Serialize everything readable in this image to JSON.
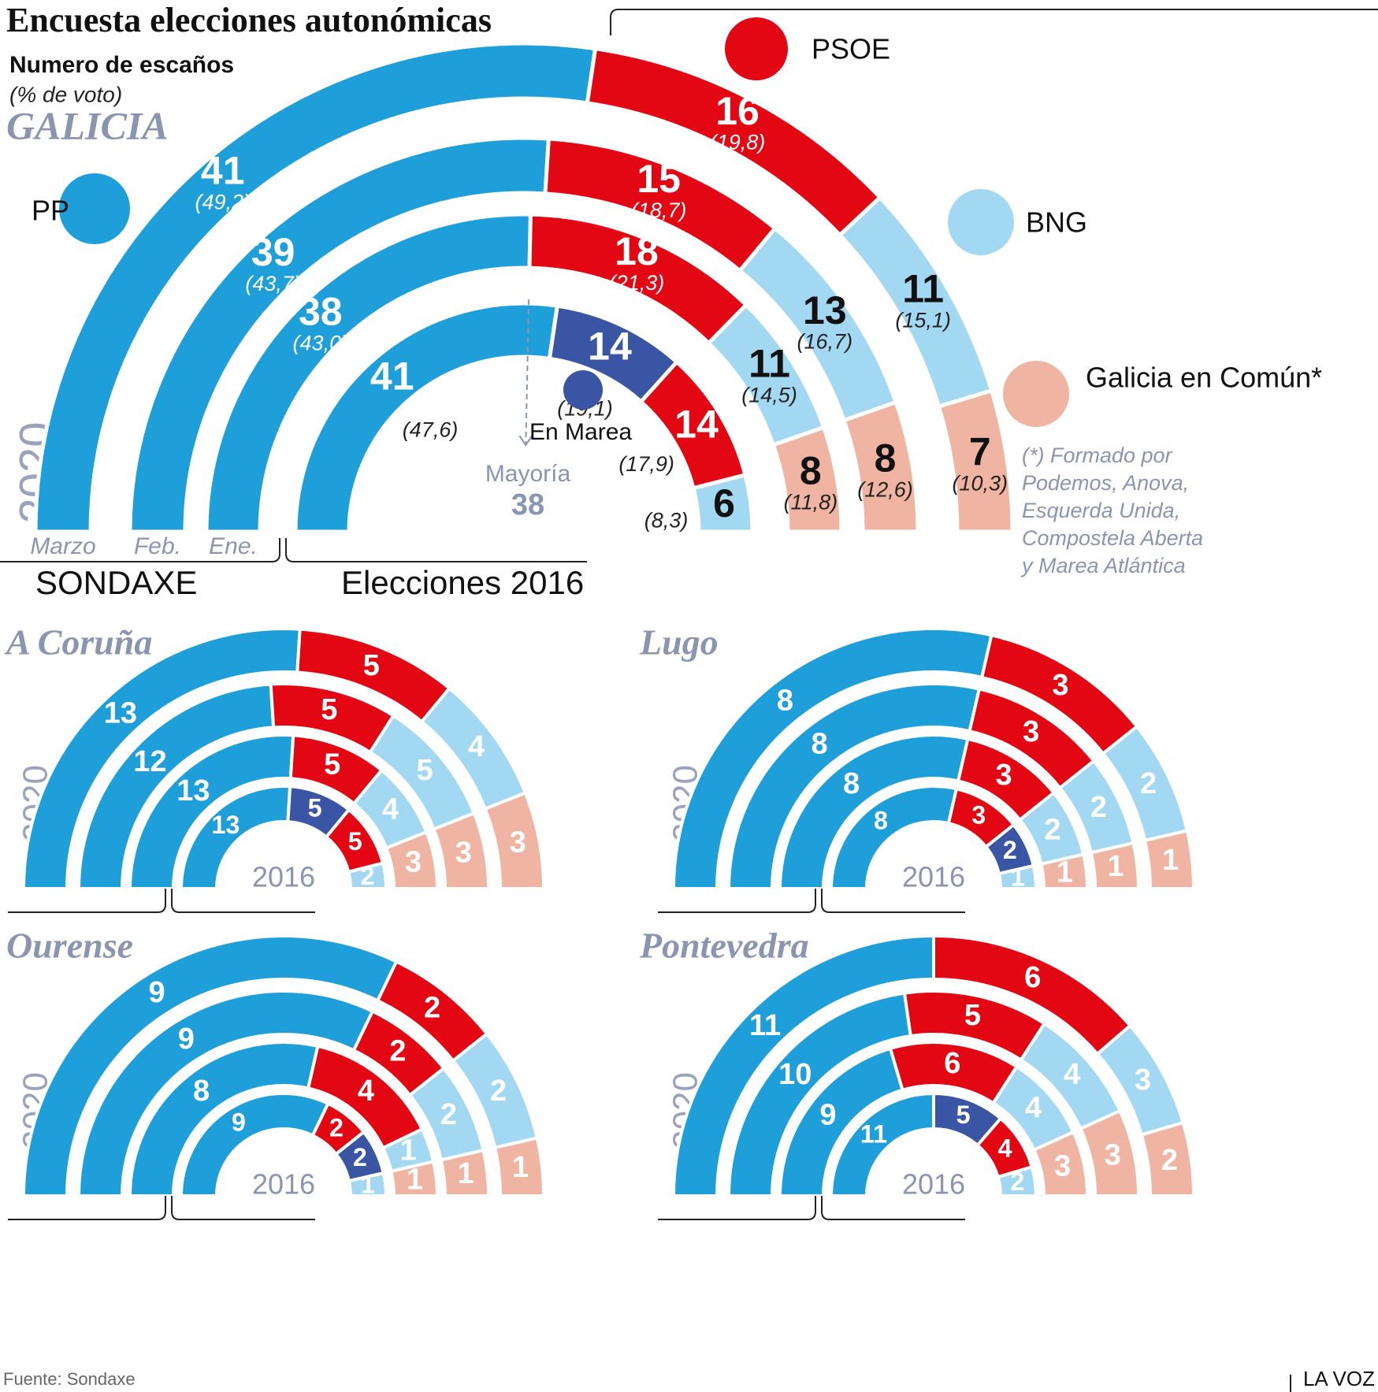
{
  "title": "Encuesta elecciones autonómicas",
  "subtitle": "Numero de escaños",
  "subtitle2": "(% de voto)",
  "source": "Fuente: Sondaxe",
  "brand": "LA VOZ",
  "chart_data": [
    {
      "type": "parliament",
      "title": "GALICIA",
      "side_label": "2020",
      "categories": [
        "Marzo",
        "Feb.",
        "Ene.",
        null
      ],
      "group_labels": [
        "SONDAXE",
        "Elecciones 2016"
      ],
      "majority_label": "Mayoría",
      "majority": 38,
      "footnote": [
        "(*) Formado por",
        "Podemos, Anova,",
        "Esquerda Unida,",
        "Compostela Aberta",
        "y Marea Atlántica"
      ],
      "series": [
        {
          "name": "PP",
          "color": "#1e9fd9",
          "values": [
            41,
            39,
            38,
            41
          ],
          "votes": [
            49.2,
            43.7,
            43.0,
            47.6
          ],
          "vote_labels": [
            "(49,2)",
            "(43,7)",
            "(43,0)",
            "(47,6)"
          ]
        },
        {
          "name": "En Marea",
          "color": "#3a55a4",
          "values": [
            null,
            null,
            null,
            14
          ],
          "votes": [
            null,
            null,
            null,
            19.1
          ],
          "vote_labels": [
            null,
            null,
            null,
            "(19,1)"
          ]
        },
        {
          "name": "PSOE",
          "color": "#e30613",
          "values": [
            16,
            15,
            18,
            14
          ],
          "votes": [
            19.8,
            18.7,
            21.3,
            17.9
          ],
          "vote_labels": [
            "(19,8)",
            "(18,7)",
            "(21,3)",
            "(17,9)"
          ]
        },
        {
          "name": "BNG",
          "color": "#a3d8f3",
          "values": [
            11,
            13,
            11,
            6
          ],
          "votes": [
            15.1,
            16.7,
            14.5,
            8.3
          ],
          "vote_labels": [
            "(15,1)",
            "(16,7)",
            "(14,5)",
            "(8,3)"
          ]
        },
        {
          "name": "Galicia en Común*",
          "color": "#efb4a2",
          "values": [
            7,
            8,
            8,
            null
          ],
          "votes": [
            10.3,
            12.6,
            11.8,
            null
          ],
          "vote_labels": [
            "(10,3)",
            "(12,6)",
            "(11,8)",
            null
          ]
        }
      ]
    },
    {
      "type": "parliament",
      "title": "A Coruña",
      "side_label": "2020",
      "categories": [
        null,
        null,
        null,
        "2016"
      ],
      "series": [
        {
          "name": "PP",
          "color": "#1e9fd9",
          "values": [
            13,
            12,
            13,
            13
          ]
        },
        {
          "name": "En Marea",
          "color": "#3a55a4",
          "values": [
            null,
            null,
            null,
            5
          ]
        },
        {
          "name": "PSOE",
          "color": "#e30613",
          "values": [
            5,
            5,
            5,
            5
          ]
        },
        {
          "name": "BNG",
          "color": "#a3d8f3",
          "values": [
            4,
            5,
            4,
            2
          ]
        },
        {
          "name": "Galicia en Común*",
          "color": "#efb4a2",
          "values": [
            3,
            3,
            3,
            null
          ]
        }
      ]
    },
    {
      "type": "parliament",
      "title": "Lugo",
      "side_label": "2020",
      "categories": [
        null,
        null,
        null,
        "2016"
      ],
      "series": [
        {
          "name": "PP",
          "color": "#1e9fd9",
          "values": [
            8,
            8,
            8,
            8
          ]
        },
        {
          "name": "PSOE",
          "color": "#e30613",
          "values": [
            3,
            3,
            3,
            3
          ]
        },
        {
          "name": "En Marea",
          "color": "#3a55a4",
          "values": [
            null,
            null,
            null,
            2
          ]
        },
        {
          "name": "BNG",
          "color": "#a3d8f3",
          "values": [
            2,
            2,
            2,
            1
          ]
        },
        {
          "name": "Galicia en Común*",
          "color": "#efb4a2",
          "values": [
            1,
            1,
            1,
            null
          ]
        }
      ]
    },
    {
      "type": "parliament",
      "title": "Ourense",
      "side_label": "2020",
      "categories": [
        null,
        null,
        null,
        "2016"
      ],
      "series": [
        {
          "name": "PP",
          "color": "#1e9fd9",
          "values": [
            9,
            9,
            8,
            9
          ]
        },
        {
          "name": "PSOE",
          "color": "#e30613",
          "values": [
            2,
            2,
            4,
            2
          ]
        },
        {
          "name": "En Marea",
          "color": "#3a55a4",
          "values": [
            null,
            null,
            null,
            2
          ]
        },
        {
          "name": "BNG",
          "color": "#a3d8f3",
          "values": [
            2,
            2,
            1,
            1
          ]
        },
        {
          "name": "Galicia en Común*",
          "color": "#efb4a2",
          "values": [
            1,
            1,
            1,
            null
          ]
        }
      ]
    },
    {
      "type": "parliament",
      "title": "Pontevedra",
      "side_label": "2020",
      "categories": [
        null,
        null,
        null,
        "2016"
      ],
      "series": [
        {
          "name": "PP",
          "color": "#1e9fd9",
          "values": [
            11,
            10,
            9,
            11
          ]
        },
        {
          "name": "En Marea",
          "color": "#3a55a4",
          "values": [
            null,
            null,
            null,
            5
          ]
        },
        {
          "name": "PSOE",
          "color": "#e30613",
          "values": [
            6,
            5,
            6,
            4
          ]
        },
        {
          "name": "BNG",
          "color": "#a3d8f3",
          "values": [
            3,
            4,
            4,
            2
          ]
        },
        {
          "name": "Galicia en Común*",
          "color": "#efb4a2",
          "values": [
            2,
            3,
            3,
            null
          ]
        }
      ]
    }
  ]
}
